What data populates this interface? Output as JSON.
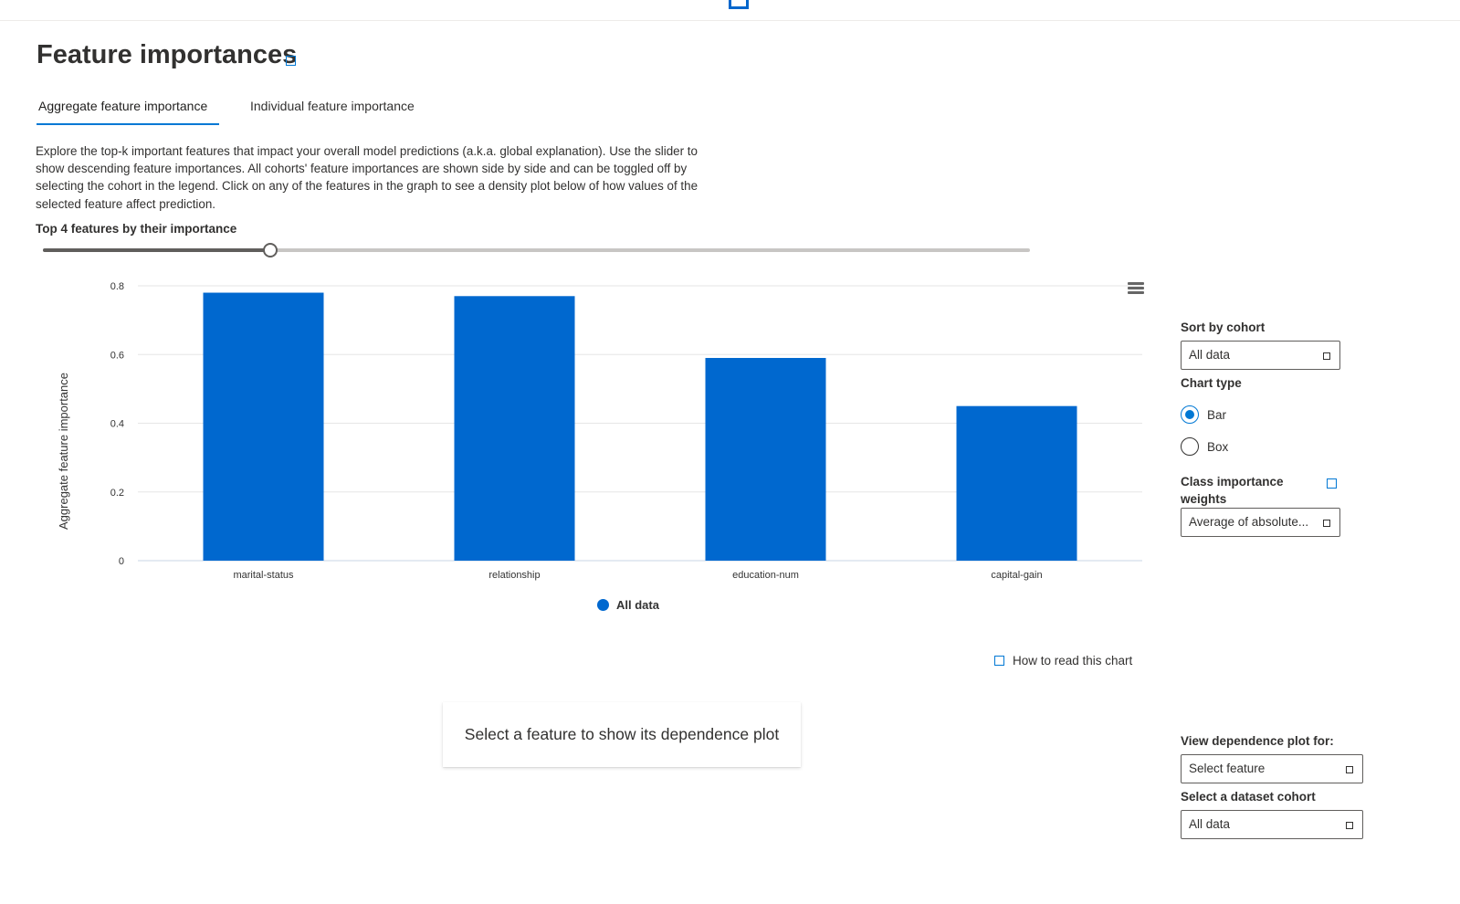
{
  "header": {
    "title": "Feature importances",
    "title_info_icon": "info-icon",
    "top_icon": "square-icon"
  },
  "tabs": [
    {
      "label": "Aggregate feature importance",
      "active": true
    },
    {
      "label": "Individual feature importance",
      "active": false
    }
  ],
  "description": "Explore the top-k important features that impact your overall model predictions (a.k.a. global explanation). Use the slider to show descending feature importances. All cohorts' feature importances are shown side by side and can be toggled off by selecting the cohort in the legend. Click on any of the features in the graph to see a density plot below of how values of the selected feature affect prediction.",
  "slider": {
    "label": "Top 4 features by their importance",
    "value": 4
  },
  "chart_data": {
    "type": "bar",
    "categories": [
      "marital-status",
      "relationship",
      "education-num",
      "capital-gain"
    ],
    "series": [
      {
        "name": "All data",
        "values": [
          0.78,
          0.77,
          0.59,
          0.45
        ]
      }
    ],
    "xlabel": "",
    "ylabel": "Aggregate feature importance",
    "ylim": [
      0,
      0.8
    ],
    "yticks": [
      0,
      0.2,
      0.4,
      0.6,
      0.8
    ],
    "ytick_labels": [
      "0",
      "0.2",
      "0.4",
      "0.6",
      "0.8"
    ],
    "grid": true,
    "legend_position": "bottom",
    "color": "#0068cf"
  },
  "chart_menu_icon": "hamburger-menu-icon",
  "legend": {
    "label": "All data",
    "color": "#0068cf"
  },
  "how_to_read": {
    "label": "How to read this chart",
    "icon": "info-icon"
  },
  "dependence_placeholder": "Select a feature to show its dependence plot",
  "sidebar": {
    "sort_by_cohort": {
      "label": "Sort by cohort",
      "value": "All data"
    },
    "chart_type": {
      "label": "Chart type",
      "options": [
        {
          "label": "Bar",
          "checked": true
        },
        {
          "label": "Box",
          "checked": false
        }
      ]
    },
    "class_importance": {
      "label_line1": "Class importance",
      "label_line2": "weights",
      "value": "Average of absolute..."
    },
    "dependence_plot": {
      "label": "View dependence plot for:",
      "placeholder": "Select feature"
    },
    "dataset_cohort": {
      "label": "Select a dataset cohort",
      "value": "All data"
    }
  },
  "colors": {
    "accent": "#0078d4",
    "bar": "#0068cf"
  }
}
